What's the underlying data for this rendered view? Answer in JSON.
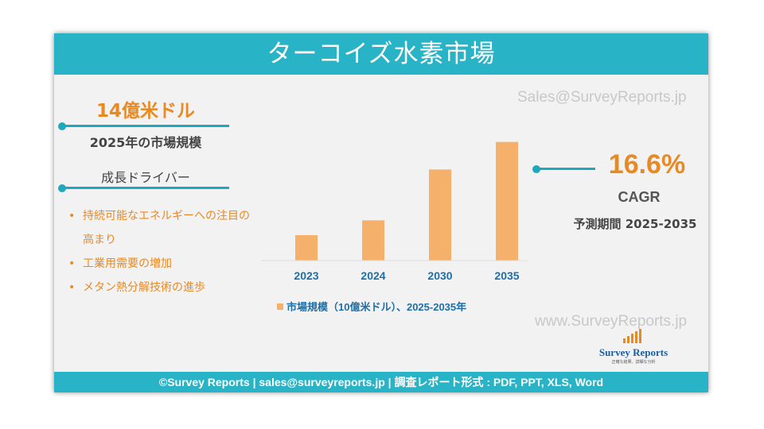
{
  "header": {
    "title": "ターコイズ水素市場"
  },
  "left_panel": {
    "market_size": "14億米ドル",
    "market_size_label": "2025年の市場規模",
    "drivers_title": "成長ドライバー",
    "drivers": [
      "持続可能なエネルギーへの注目の高まり",
      "工業用需要の増加",
      "メタン熱分解技術の進歩"
    ]
  },
  "cagr": {
    "value": "16.6%",
    "label": "CAGR",
    "period": "予測期間 2025-2035"
  },
  "watermarks": {
    "top": "Sales@SurveyReports.jp",
    "bottom": "www.SurveyReports.jp"
  },
  "logo": {
    "name": "Survey Reports",
    "tagline": "正確な結果、詳細な分析"
  },
  "footer": {
    "text": "©Survey Reports | sales@surveyreports.jp |  調査レポート形式 : PDF, PPT, XLS, Word"
  },
  "colors": {
    "accent": "#28b3c6",
    "bar": "#f5b06b",
    "highlight": "#e88a24"
  },
  "chart_data": {
    "type": "bar",
    "categories": [
      "2023",
      "2024",
      "2030",
      "2035"
    ],
    "series": [
      {
        "name": "市場規模（10億米ドル）、2025-2035年",
        "values": [
          1.2,
          1.9,
          4.3,
          5.6
        ]
      }
    ],
    "ylim": [
      0,
      6
    ],
    "grid": false,
    "legend": "bottom"
  }
}
